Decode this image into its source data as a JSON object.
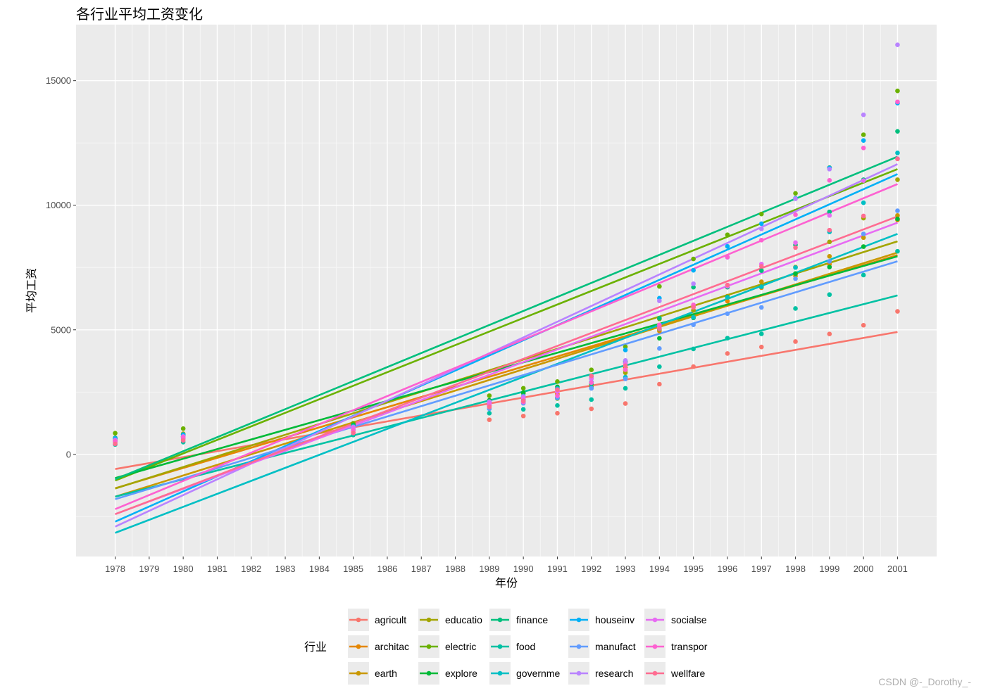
{
  "chart_data": {
    "type": "scatter",
    "title": "各行业平均工资变化",
    "xlabel": "年份",
    "ylabel": "平均工资",
    "legend_title": "行业",
    "legend_position": "bottom",
    "grid": true,
    "xlim": [
      1976.85,
      2002.15
    ],
    "ylim": [
      -4100,
      17250
    ],
    "x_ticks": [
      1978,
      1979,
      1980,
      1981,
      1982,
      1983,
      1984,
      1985,
      1986,
      1987,
      1988,
      1989,
      1990,
      1991,
      1992,
      1993,
      1994,
      1995,
      1996,
      1997,
      1998,
      1999,
      2000,
      2001
    ],
    "y_ticks": [
      0,
      5000,
      10000,
      15000
    ],
    "x_data_years": [
      1978,
      1980,
      1985,
      1989,
      1990,
      1991,
      1992,
      1993,
      1994,
      1995,
      1996,
      1997,
      1998,
      1999,
      2000,
      2001
    ],
    "series": [
      {
        "name": "agricult",
        "color": "#F8766D",
        "values": [
          470,
          616,
          878,
          1389,
          1541,
          1652,
          1828,
          2042,
          2819,
          3522,
          4050,
          4311,
          4528,
          4832,
          5184,
          5741
        ],
        "fit": [
          -589,
          4912
        ]
      },
      {
        "name": "architac",
        "color": "#E58700",
        "values": [
          560,
          700,
          1150,
          1950,
          2230,
          2420,
          2820,
          3380,
          4950,
          5780,
          6150,
          6690,
          7160,
          7630,
          8340,
          9410
        ],
        "fit": [
          -1360,
          8000
        ]
      },
      {
        "name": "earth",
        "color": "#C99800",
        "values": [
          660,
          830,
          1250,
          2150,
          2450,
          2640,
          3050,
          3490,
          5010,
          5920,
          6350,
          6930,
          7520,
          7950,
          8700,
          9590
        ],
        "fit": [
          -1700,
          8100
        ]
      },
      {
        "name": "educatio",
        "color": "#A3A500",
        "values": [
          545,
          705,
          1166,
          2081,
          2117,
          2243,
          2715,
          3278,
          5435,
          5786,
          6289,
          6773,
          7238,
          8528,
          9482,
          11026
        ],
        "fit": [
          -1370,
          8550
        ]
      },
      {
        "name": "electric",
        "color": "#6BB100",
        "values": [
          850,
          1035,
          1239,
          2356,
          2656,
          2922,
          3392,
          4319,
          6741,
          7843,
          8816,
          9649,
          10478,
          11513,
          12830,
          14590
        ],
        "fit": [
          -1050,
          11450
        ]
      },
      {
        "name": "explore",
        "color": "#00BA38",
        "values": [
          660,
          800,
          1180,
          2170,
          2480,
          2710,
          3130,
          3710,
          4660,
          5480,
          6320,
          6730,
          7260,
          7520,
          8340,
          9450
        ],
        "fit": [
          -950,
          7950
        ]
      },
      {
        "name": "finance",
        "color": "#00BF7D",
        "values": [
          610,
          720,
          1150,
          2097,
          2097,
          2255,
          2829,
          3740,
          5467,
          6712,
          6712,
          7376,
          8406,
          9734,
          11025,
          12967
        ],
        "fit": [
          -1000,
          11950
        ]
      },
      {
        "name": "food",
        "color": "#00C1A3",
        "values": [
          397,
          492,
          777,
          1652,
          1808,
          1964,
          2199,
          2652,
          3520,
          4232,
          4665,
          4838,
          5856,
          6413,
          7197,
          8153
        ],
        "fit": [
          -1700,
          6380
        ]
      },
      {
        "name": "governme",
        "color": "#00BFC4",
        "values": [
          640,
          800,
          1120,
          1960,
          2180,
          2280,
          2670,
          3100,
          5030,
          5500,
          6300,
          6730,
          7500,
          8930,
          10100,
          12100
        ],
        "fit": [
          -3150,
          8850
        ]
      },
      {
        "name": "houseinv",
        "color": "#00B0F6",
        "values": [
          650,
          780,
          1070,
          2110,
          2340,
          2640,
          2900,
          4190,
          6270,
          7390,
          8350,
          9260,
          10280,
          11500,
          12600,
          14100
        ],
        "fit": [
          -2700,
          11250
        ]
      },
      {
        "name": "manufact",
        "color": "#619CFF",
        "values": [
          520,
          660,
          980,
          1830,
          2050,
          2270,
          2650,
          3030,
          4250,
          5200,
          5650,
          5900,
          7050,
          7750,
          8850,
          9780
        ],
        "fit": [
          -1800,
          7750
        ]
      },
      {
        "name": "research",
        "color": "#B983FF",
        "values": [
          580,
          720,
          1100,
          2120,
          2320,
          2580,
          3090,
          3770,
          6160,
          6850,
          7910,
          9050,
          10260,
          11450,
          13630,
          16440
        ],
        "fit": [
          -2900,
          11650
        ]
      },
      {
        "name": "socialse",
        "color": "#E76BF3",
        "values": [
          560,
          700,
          1050,
          2050,
          2250,
          2520,
          3040,
          3650,
          5100,
          5920,
          6750,
          7640,
          8500,
          9590,
          10990,
          11870
        ],
        "fit": [
          -2400,
          9300
        ]
      },
      {
        "name": "transpor",
        "color": "#FD61D1",
        "values": [
          520,
          680,
          960,
          1950,
          2100,
          2350,
          2880,
          3400,
          5200,
          6000,
          7920,
          8600,
          9620,
          11000,
          12300,
          14150
        ],
        "fit": [
          -2200,
          10850
        ]
      },
      {
        "name": "wellfare",
        "color": "#FF6C91",
        "values": [
          420,
          560,
          860,
          1900,
          2150,
          2600,
          3150,
          3560,
          5050,
          5900,
          6800,
          7550,
          8300,
          9000,
          9570,
          11860
        ],
        "fit": [
          -2400,
          9550
        ]
      }
    ]
  },
  "watermark": "CSDN @-_Dorothy_-"
}
